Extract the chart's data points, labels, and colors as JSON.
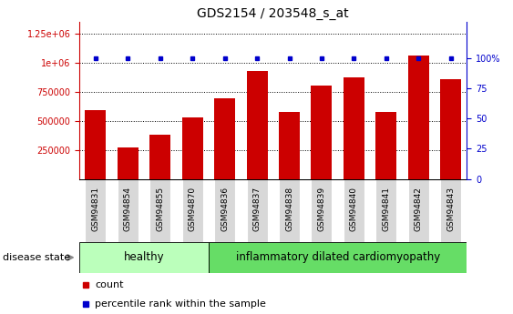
{
  "title": "GDS2154 / 203548_s_at",
  "samples": [
    "GSM94831",
    "GSM94854",
    "GSM94855",
    "GSM94870",
    "GSM94836",
    "GSM94837",
    "GSM94838",
    "GSM94839",
    "GSM94840",
    "GSM94841",
    "GSM94842",
    "GSM94843"
  ],
  "counts": [
    590000,
    270000,
    380000,
    530000,
    690000,
    930000,
    575000,
    800000,
    870000,
    575000,
    1060000,
    860000
  ],
  "percentiles": [
    100,
    100,
    100,
    100,
    100,
    100,
    100,
    100,
    100,
    100,
    100,
    100
  ],
  "bar_color": "#cc0000",
  "percentile_color": "#0000cc",
  "n_healthy": 4,
  "n_disease": 8,
  "healthy_label": "healthy",
  "disease_label": "inflammatory dilated cardiomyopathy",
  "healthy_bg": "#bbffbb",
  "disease_bg": "#66dd66",
  "xlabels_bg": "#d8d8d8",
  "ylim_max": 1350000,
  "y2lim_max": 130,
  "yticks": [
    250000,
    500000,
    750000,
    1000000,
    1250000
  ],
  "ytick_labels": [
    "250000",
    "500000",
    "750000",
    "1e+06",
    "1.25e+06"
  ],
  "y2ticks": [
    0,
    25,
    50,
    75,
    100
  ],
  "y2tick_labels": [
    "0",
    "25",
    "50",
    "75",
    "100%"
  ],
  "grid_color": "#000000",
  "title_fontsize": 10,
  "tick_fontsize": 7,
  "legend_fontsize": 8,
  "disease_state_label": "disease state",
  "left_axis_color": "#cc0000",
  "right_axis_color": "#0000cc",
  "legend_count_label": "count",
  "legend_pct_label": "percentile rank within the sample"
}
